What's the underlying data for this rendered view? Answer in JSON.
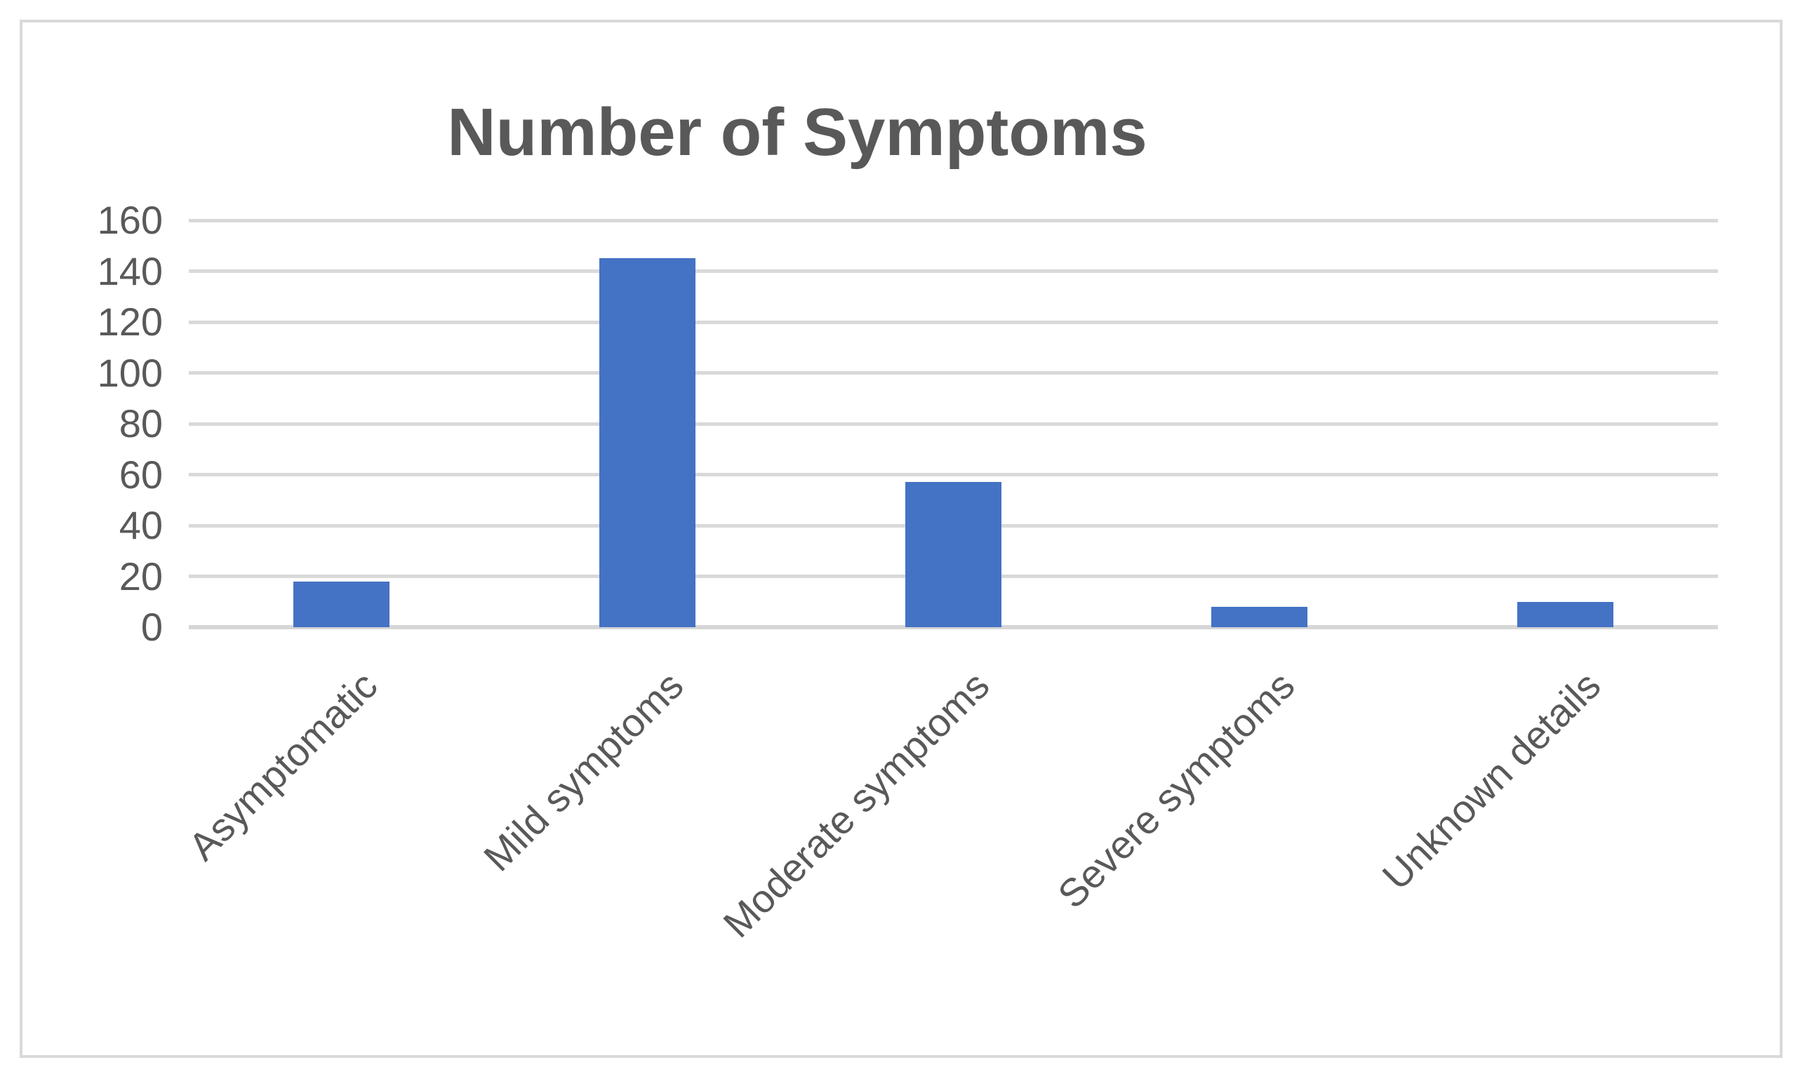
{
  "chart_data": {
    "type": "bar",
    "title": "Number of Symptoms",
    "categories": [
      "Asymptomatic",
      "Mild symptoms",
      "Moderate symptoms",
      "Severe symptoms",
      "Unknown details"
    ],
    "values": [
      18,
      145,
      57,
      8,
      10
    ],
    "xlabel": "",
    "ylabel": "",
    "ylim": [
      0,
      160
    ],
    "yticks": [
      0,
      20,
      40,
      60,
      80,
      100,
      120,
      140,
      160
    ],
    "grid": true,
    "legend": "none",
    "x_label_rotation_deg": 45,
    "colors": {
      "bar": "#4472c4",
      "gridline": "#d9d9d9",
      "text": "#595959",
      "frame_border": "#d9d9d9",
      "background": "#ffffff"
    }
  }
}
